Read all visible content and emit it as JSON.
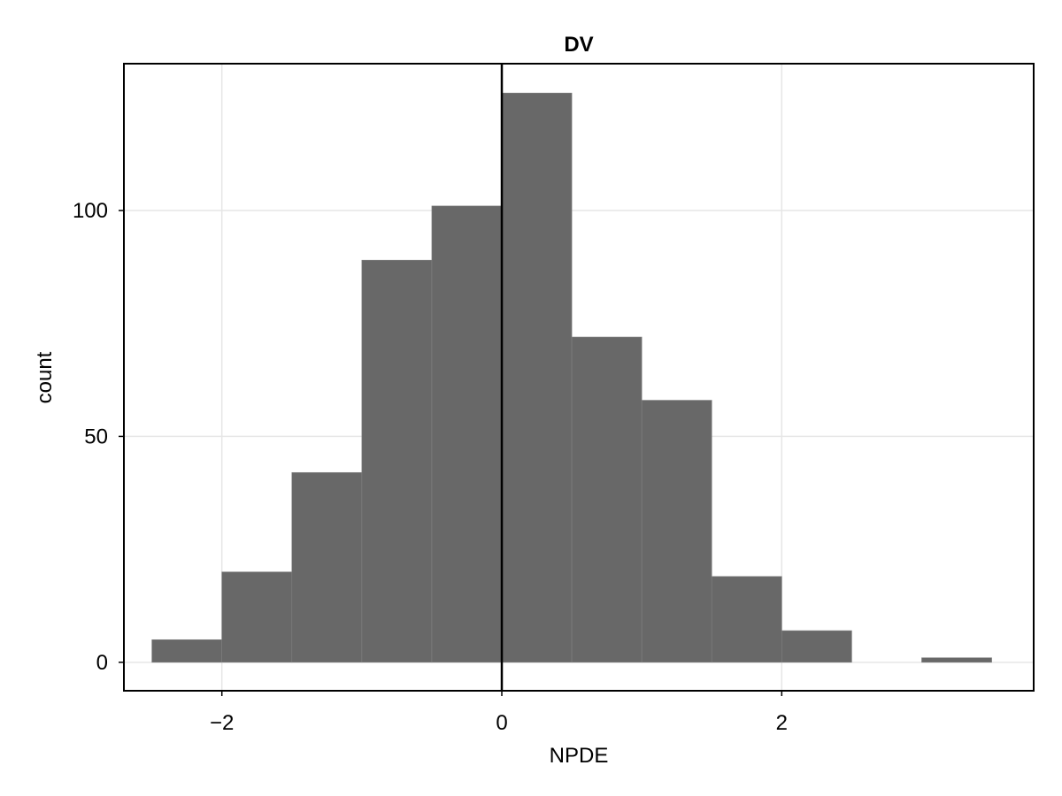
{
  "chart_data": {
    "type": "bar",
    "title": "DV",
    "xlabel": "NPDE",
    "ylabel": "count",
    "bin_edges": [
      -2.5,
      -2.0,
      -1.5,
      -1.0,
      -0.5,
      0.0,
      0.5,
      1.0,
      1.5,
      2.0,
      2.5,
      3.0,
      3.5
    ],
    "values": [
      5,
      20,
      42,
      89,
      101,
      126,
      72,
      58,
      19,
      7,
      0,
      1
    ],
    "xlim": [
      -2.7,
      3.8
    ],
    "ylim": [
      -6.3,
      132.5
    ],
    "x_ticks": [
      -2,
      0,
      2
    ],
    "x_tick_labels": [
      "−2",
      "0",
      "2"
    ],
    "y_ticks": [
      0,
      50,
      100
    ],
    "y_tick_labels": [
      "0",
      "50",
      "100"
    ],
    "reference_line_x": 0,
    "grid": true,
    "legend": "none",
    "colors": {
      "bar_fill": "#686868",
      "bar_edge": "#808080",
      "grid": "#e6e6e6",
      "reference_line": "#000000",
      "frame": "#000000"
    }
  }
}
